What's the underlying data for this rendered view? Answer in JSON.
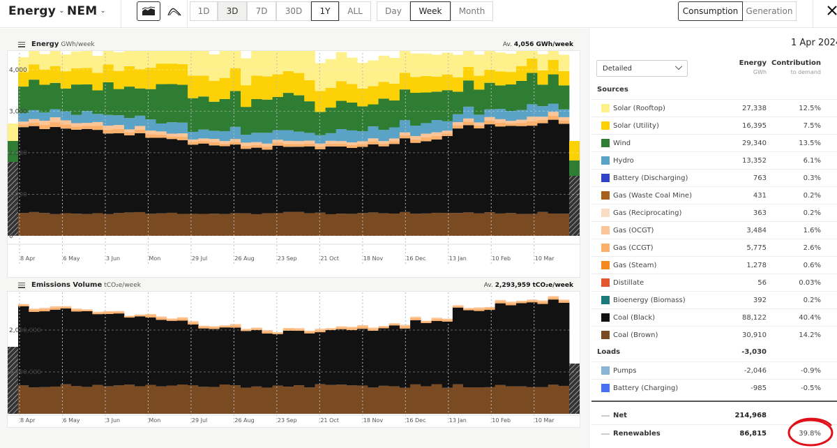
{
  "topbar": {
    "brand": "Energy",
    "region": "NEM",
    "ranges": [
      "1D",
      "3D",
      "7D",
      "30D",
      "1Y",
      "ALL"
    ],
    "selected_range": "1Y",
    "intervals": [
      "Day",
      "Week",
      "Month"
    ],
    "selected_interval": "Week",
    "views": [
      "Consumption",
      "Generation"
    ],
    "selected_view": "Consumption",
    "chart_type_icons": [
      "stacked-area-icon",
      "line-chart-icon"
    ]
  },
  "energy_chart": {
    "title": "Energy",
    "unit": "GWh/week",
    "avg_prefix": "Av.",
    "avg_value": "4,056 GWh/week",
    "y_ticks": [
      "4,000",
      "3,000",
      "2,000",
      "1,000",
      "0"
    ],
    "x_labels": [
      "8 Apr",
      "6 May",
      "3 Jun",
      "Mon",
      "29 Jul",
      "26 Aug",
      "23 Sep",
      "21 Oct",
      "18 Nov",
      "16 Dec",
      "13 Jan",
      "10 Feb",
      "10 Mar"
    ]
  },
  "emissions_chart": {
    "title": "Emissions Volume",
    "unit": "tCO₂e/week",
    "avg_prefix": "Av.",
    "avg_value": "2,293,959 tCO₂e/week",
    "y_ticks": [
      "2,000,000",
      "1,000,000"
    ],
    "x_labels": [
      "8 Apr",
      "6 May",
      "3 Jun",
      "Mon",
      "29 Jul",
      "26 Aug",
      "23 Sep",
      "21 Oct",
      "18 Nov",
      "16 Dec",
      "13 Jan",
      "10 Feb",
      "10 Mar"
    ]
  },
  "table": {
    "date": "1 Apr 2024 -",
    "dropdown_value": "Detailed",
    "col_energy": "Energy",
    "col_energy_unit": "GWh",
    "col_contribution": "Contribution",
    "col_contribution_sub": "to demand",
    "sources_label": "Sources",
    "sources": [
      {
        "label": "Solar (Rooftop)",
        "energy": "27,338",
        "pct": "12.5%",
        "color": "#fef08a"
      },
      {
        "label": "Solar (Utility)",
        "energy": "16,395",
        "pct": "7.5%",
        "color": "#fcd206"
      },
      {
        "label": "Wind",
        "energy": "29,340",
        "pct": "13.5%",
        "color": "#2e7d32"
      },
      {
        "label": "Hydro",
        "energy": "13,352",
        "pct": "6.1%",
        "color": "#5ba3c6"
      },
      {
        "label": "Battery (Discharging)",
        "energy": "763",
        "pct": "0.3%",
        "color": "#3044c8"
      },
      {
        "label": "Gas (Waste Coal Mine)",
        "energy": "431",
        "pct": "0.2%",
        "color": "#a9601e"
      },
      {
        "label": "Gas (Reciprocating)",
        "energy": "363",
        "pct": "0.2%",
        "color": "#f9dcc4"
      },
      {
        "label": "Gas (OCGT)",
        "energy": "3,484",
        "pct": "1.6%",
        "color": "#fcc597"
      },
      {
        "label": "Gas (CCGT)",
        "energy": "5,775",
        "pct": "2.6%",
        "color": "#fbb06b"
      },
      {
        "label": "Gas (Steam)",
        "energy": "1,278",
        "pct": "0.6%",
        "color": "#f48a1f"
      },
      {
        "label": "Distillate",
        "energy": "56",
        "pct": "0.03%",
        "color": "#e3552f"
      },
      {
        "label": "Bioenergy (Biomass)",
        "energy": "392",
        "pct": "0.2%",
        "color": "#1b7a7a"
      },
      {
        "label": "Coal (Black)",
        "energy": "88,122",
        "pct": "40.4%",
        "color": "#121212"
      },
      {
        "label": "Coal (Brown)",
        "energy": "30,910",
        "pct": "14.2%",
        "color": "#7a4a22"
      }
    ],
    "loads_label": "Loads",
    "loads_total": "-3,030",
    "loads": [
      {
        "label": "Pumps",
        "energy": "-2,046",
        "pct": "-0.9%",
        "color": "#8ab4d4"
      },
      {
        "label": "Battery (Charging)",
        "energy": "-985",
        "pct": "-0.5%",
        "color": "#4a72f0"
      }
    ],
    "net_label": "Net",
    "net_value": "214,968",
    "renewables_label": "Renewables",
    "renewables_value": "86,815",
    "renewables_pct": "39.8%",
    "highlight_color": "#e0101a"
  }
}
